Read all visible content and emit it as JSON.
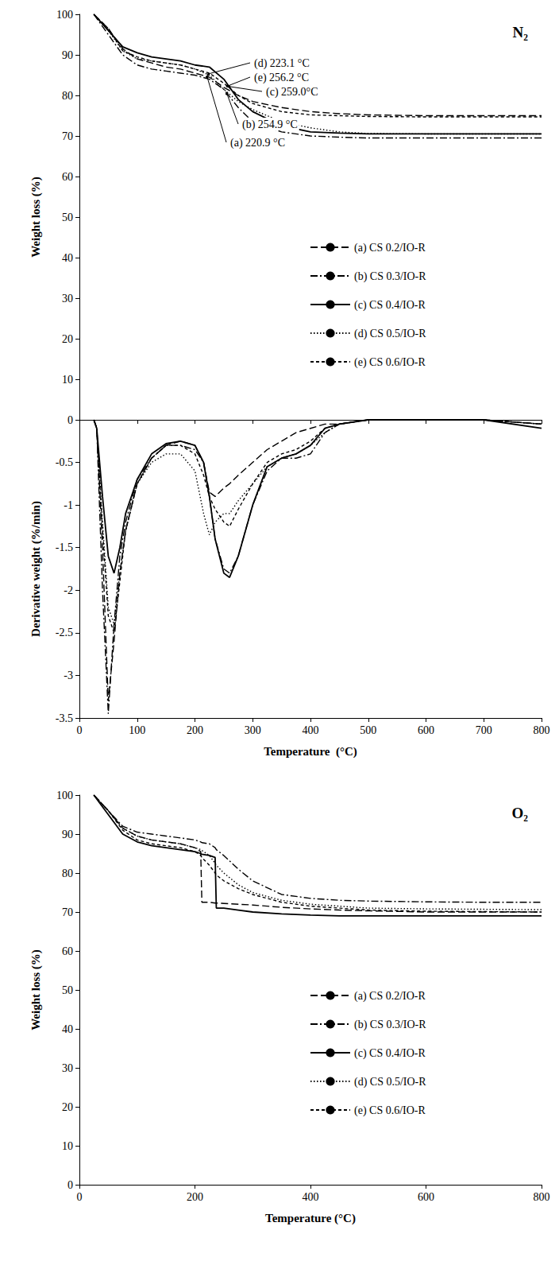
{
  "chart_data": [
    {
      "type": "line",
      "title": "N₂",
      "ylabel": "Weight loss (%)",
      "x": [
        25,
        50,
        75,
        100,
        125,
        150,
        175,
        200,
        225,
        250,
        275,
        300,
        350,
        400,
        450,
        500,
        600,
        700,
        800
      ],
      "series": [
        {
          "name": "(a) CS 0.2/IO-R",
          "color": "#000000",
          "line_style": "dashed",
          "values": [
            100,
            96.5,
            91.5,
            89,
            88,
            87,
            86.5,
            85.5,
            84.5,
            82,
            80,
            78.5,
            77,
            76,
            75.5,
            75.2,
            75,
            75,
            75
          ]
        },
        {
          "name": "(b) CS 0.3/IO-R",
          "color": "#000000",
          "line_style": "dashdot",
          "values": [
            100,
            95,
            90,
            87.5,
            86.5,
            86,
            85.5,
            85,
            84,
            81.5,
            77,
            73.5,
            71,
            70,
            69.7,
            69.5,
            69.5,
            69.5,
            69.5
          ]
        },
        {
          "name": "(c) CS 0.4/IO-R",
          "color": "#000000",
          "line_style": "solid",
          "values": [
            100,
            96,
            92,
            90.5,
            89.5,
            89,
            88.5,
            87.5,
            87,
            84,
            79,
            76,
            72.5,
            71,
            70.7,
            70.5,
            70.5,
            70.5,
            70.5
          ]
        },
        {
          "name": "(d) CS 0.5/IO-R",
          "color": "#000000",
          "line_style": "dotted",
          "values": [
            100,
            96,
            91,
            89,
            88.5,
            88,
            87.5,
            86.5,
            85,
            81.5,
            78.5,
            76.5,
            73.5,
            72,
            71,
            70.6,
            70.5,
            70.5,
            70.5
          ]
        },
        {
          "name": "(e) CS 0.6/IO-R",
          "color": "#000000",
          "line_style": "short_dashed",
          "values": [
            100,
            96.5,
            91,
            89.5,
            88.5,
            88,
            87.5,
            86.5,
            85.5,
            83,
            80,
            78,
            76,
            75.2,
            75,
            74.8,
            74.7,
            74.7,
            74.7
          ]
        }
      ],
      "annotations": [
        {
          "text": "(d) 223.1 °C",
          "x": 223.1,
          "y": 85.3
        },
        {
          "text": "(e) 256.2 °C",
          "x": 256.2,
          "y": 82.3
        },
        {
          "text": "(c) 259.0°C",
          "x": 259.0,
          "y": 82.2
        },
        {
          "text": "(b) 254.9 °C",
          "x": 254.9,
          "y": 80.6
        },
        {
          "text": "(a) 220.9 °C",
          "x": 220.9,
          "y": 84.7
        }
      ],
      "xlim": [
        0,
        800
      ],
      "xticks": [
        0,
        100,
        200,
        300,
        400,
        500,
        600,
        700,
        800
      ],
      "ylim": [
        0,
        100
      ],
      "yticks": [
        10,
        20,
        30,
        40,
        50,
        60,
        70,
        80,
        90,
        100
      ],
      "tick_labels": "y",
      "grid": false,
      "legend": "right"
    },
    {
      "type": "line",
      "xlabel": "Temperature  (°C)",
      "ylabel": "Derivative weight (%/min)",
      "x": [
        25,
        30,
        40,
        50,
        60,
        70,
        80,
        100,
        125,
        150,
        175,
        200,
        215,
        225,
        235,
        250,
        260,
        275,
        300,
        325,
        350,
        375,
        400,
        425,
        450,
        500,
        600,
        700,
        800
      ],
      "series": [
        {
          "color": "#000000",
          "line_style": "dashed",
          "values": [
            0,
            -0.1,
            -1.5,
            -3.3,
            -2.6,
            -1.8,
            -1.3,
            -0.75,
            -0.45,
            -0.3,
            -0.25,
            -0.3,
            -0.5,
            -0.85,
            -0.9,
            -0.8,
            -0.75,
            -0.65,
            -0.5,
            -0.35,
            -0.25,
            -0.15,
            -0.1,
            -0.05,
            -0.05,
            0,
            0,
            0,
            -0.05
          ]
        },
        {
          "color": "#000000",
          "line_style": "dashdot",
          "values": [
            0,
            -0.1,
            -2.0,
            -3.45,
            -2.4,
            -1.6,
            -1.2,
            -0.7,
            -0.45,
            -0.3,
            -0.3,
            -0.35,
            -0.5,
            -0.9,
            -1.4,
            -1.75,
            -1.8,
            -1.6,
            -1.0,
            -0.6,
            -0.45,
            -0.45,
            -0.4,
            -0.15,
            -0.05,
            0,
            0,
            0,
            -0.05
          ]
        },
        {
          "color": "#000000",
          "line_style": "solid",
          "values": [
            0,
            -0.1,
            -0.9,
            -1.6,
            -1.8,
            -1.5,
            -1.1,
            -0.7,
            -0.4,
            -0.28,
            -0.25,
            -0.3,
            -0.5,
            -0.9,
            -1.4,
            -1.8,
            -1.85,
            -1.6,
            -1.0,
            -0.55,
            -0.45,
            -0.4,
            -0.3,
            -0.1,
            -0.05,
            0,
            0,
            0,
            -0.1
          ]
        },
        {
          "color": "#000000",
          "line_style": "dotted",
          "values": [
            0,
            -0.1,
            -1.2,
            -2.2,
            -2.4,
            -1.8,
            -1.3,
            -0.75,
            -0.5,
            -0.4,
            -0.4,
            -0.6,
            -1.1,
            -1.35,
            -1.2,
            -1.1,
            -1.1,
            -0.95,
            -0.75,
            -0.55,
            -0.45,
            -0.4,
            -0.3,
            -0.15,
            -0.05,
            0,
            0,
            0,
            -0.05
          ]
        },
        {
          "color": "#000000",
          "line_style": "short_dashed",
          "values": [
            0,
            -0.1,
            -1.3,
            -2.3,
            -2.5,
            -1.9,
            -1.3,
            -0.75,
            -0.45,
            -0.3,
            -0.3,
            -0.4,
            -0.65,
            -0.9,
            -1.05,
            -1.2,
            -1.25,
            -1.05,
            -0.75,
            -0.5,
            -0.4,
            -0.35,
            -0.25,
            -0.1,
            -0.05,
            0,
            0,
            0,
            -0.05
          ]
        }
      ],
      "xlim": [
        0,
        800
      ],
      "xticks": [
        0,
        100,
        200,
        300,
        400,
        500,
        600,
        700,
        800
      ],
      "ylim": [
        -3.5,
        0
      ],
      "yticks": [
        -3.5,
        -3,
        -2.5,
        -2,
        -1.5,
        -1,
        -0.5,
        0
      ],
      "grid": false
    },
    {
      "type": "line",
      "title": "O₂",
      "xlabel": "Temperature (°C)",
      "ylabel": "Weight loss (%)",
      "x": [
        25,
        50,
        75,
        100,
        125,
        150,
        175,
        200,
        210,
        212,
        225,
        235,
        237,
        250,
        275,
        300,
        350,
        400,
        450,
        500,
        600,
        700,
        800
      ],
      "series": [
        {
          "name": "(a) CS 0.2/IO-R",
          "color": "#000000",
          "line_style": "dashed",
          "values": [
            100,
            96,
            91.5,
            89.5,
            88.5,
            88,
            87.5,
            86.5,
            85.5,
            72.5,
            72.5,
            72.3,
            72.3,
            72.2,
            72,
            71.8,
            71.2,
            70.8,
            70.5,
            70.3,
            70,
            70,
            70
          ]
        },
        {
          "name": "(b) CS 0.3/IO-R",
          "color": "#000000",
          "line_style": "dashdot",
          "values": [
            100,
            96,
            92,
            90.5,
            90,
            89.5,
            89,
            88.5,
            88,
            87.8,
            87.5,
            86.5,
            86,
            84.5,
            81,
            78,
            74.5,
            73.5,
            73,
            72.8,
            72.6,
            72.5,
            72.5
          ]
        },
        {
          "name": "(c) CS 0.4/IO-R",
          "color": "#000000",
          "line_style": "solid",
          "values": [
            100,
            95,
            90,
            88,
            87,
            86.5,
            86,
            85.5,
            85,
            84.8,
            84.5,
            84,
            71,
            71,
            70.5,
            70,
            69.5,
            69.2,
            69,
            69,
            69,
            69,
            69
          ]
        },
        {
          "name": "(d) CS 0.5/IO-R",
          "color": "#000000",
          "line_style": "dotted",
          "values": [
            100,
            96,
            91.5,
            89.5,
            88.5,
            88,
            87.5,
            86.5,
            86,
            85.8,
            84.5,
            82.5,
            82,
            80,
            77,
            75,
            73,
            72,
            71.5,
            71,
            70.8,
            70.7,
            70.6
          ]
        },
        {
          "name": "(e) CS 0.6/IO-R",
          "color": "#000000",
          "line_style": "short_dashed",
          "values": [
            100,
            96,
            91,
            88.5,
            87.5,
            87,
            86.5,
            85.5,
            84.5,
            84,
            82,
            80,
            79.5,
            78,
            76,
            74.5,
            72.5,
            71.5,
            71,
            70.5,
            70.2,
            70.1,
            70
          ]
        }
      ],
      "xlim": [
        0,
        800
      ],
      "xticks": [
        0,
        200,
        400,
        600,
        800
      ],
      "ylim": [
        0,
        100
      ],
      "yticks": [
        0,
        10,
        20,
        30,
        40,
        50,
        60,
        70,
        80,
        90,
        100
      ],
      "grid": false,
      "legend": "right"
    }
  ]
}
